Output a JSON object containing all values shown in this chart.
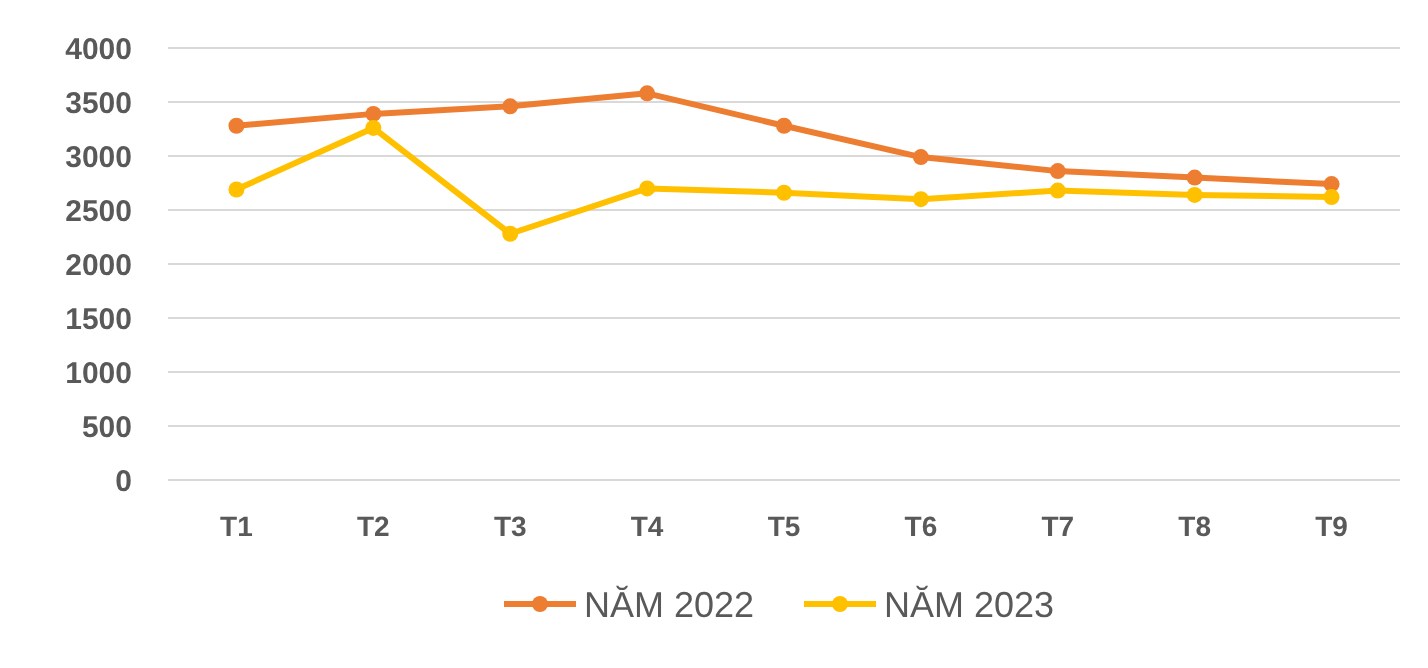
{
  "chart_data": {
    "type": "line",
    "categories": [
      "T1",
      "T2",
      "T3",
      "T4",
      "T5",
      "T6",
      "T7",
      "T8",
      "T9"
    ],
    "series": [
      {
        "name": "NĂM 2022",
        "color": "#ed7d31",
        "values": [
          3280,
          3390,
          3460,
          3580,
          3280,
          2990,
          2860,
          2800,
          2740
        ]
      },
      {
        "name": "NĂM 2023",
        "color": "#ffc000",
        "values": [
          2690,
          3260,
          2280,
          2700,
          2660,
          2600,
          2680,
          2640,
          2620
        ]
      }
    ],
    "ylim": [
      0,
      4000
    ],
    "yticks": [
      0,
      500,
      1000,
      1500,
      2000,
      2500,
      3000,
      3500,
      4000
    ],
    "grid": "y",
    "legend": "bottom",
    "marker": "circle",
    "line_style": "solid"
  }
}
